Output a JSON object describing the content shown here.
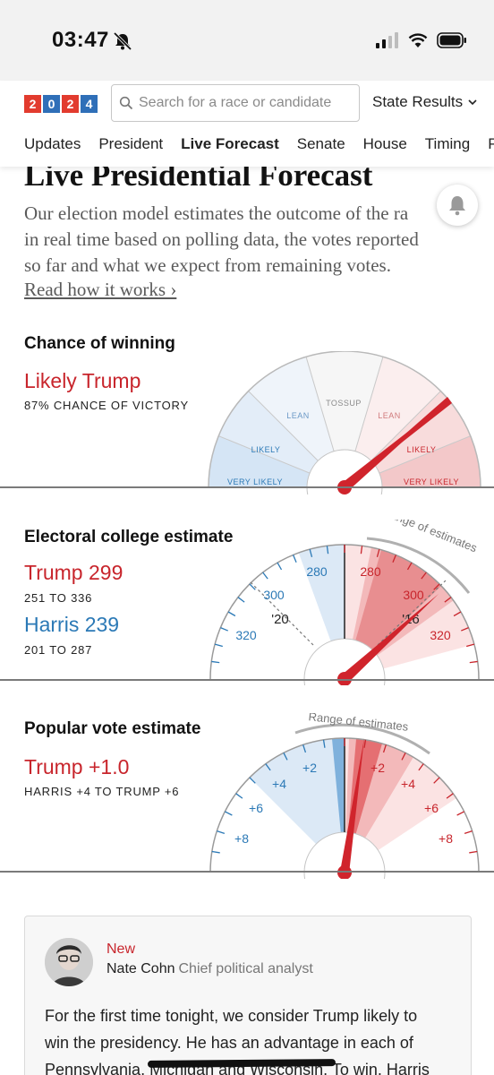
{
  "status_bar": {
    "time": "03:47"
  },
  "header": {
    "logo_digits": [
      "2",
      "0",
      "2",
      "4"
    ],
    "search_placeholder": "Search for a race or candidate",
    "state_results": "State Results",
    "nav": [
      "Updates",
      "President",
      "Live Forecast",
      "Senate",
      "House",
      "Timing",
      "P"
    ],
    "active_nav": "Live Forecast"
  },
  "page": {
    "title": "Live Presidential Forecast",
    "intro_lines": [
      "Our election model estimates the outcome of the ra",
      "in real time based on polling data, the votes reported",
      "so far and what we expect from remaining votes."
    ],
    "read_link": "Read how it works ›"
  },
  "chance": {
    "section_title": "Chance of winning",
    "headline": "Likely Trump",
    "subline": "87% CHANCE OF VICTORY",
    "probability_trump": 0.87,
    "gauge_labels": {
      "very_likely_left": "VERY LIKELY",
      "likely_left": "LIKELY",
      "lean_left": "LEAN",
      "tossup": "TOSSUP",
      "lean_right": "LEAN",
      "likely_right": "LIKELY",
      "very_likely_right": "VERY LIKELY"
    }
  },
  "electoral": {
    "section_title": "Electoral college estimate",
    "trump_label": "Trump 299",
    "trump_range": "251 TO 336",
    "harris_label": "Harris 239",
    "harris_range": "201 TO 287",
    "range_caption": "Range of estimates",
    "tick_labels": {
      "left_280": "280",
      "left_300": "300",
      "left_320": "320",
      "right_280": "280",
      "right_300": "300",
      "right_320": "320"
    },
    "marker_2020": "'20",
    "marker_2016": "'16"
  },
  "popular": {
    "section_title": "Popular vote estimate",
    "headline": "Trump +1.0",
    "range": "HARRIS +4 TO TRUMP +6",
    "range_caption": "Range of estimates",
    "tick_labels": {
      "left_2": "+2",
      "left_4": "+4",
      "left_6": "+6",
      "left_8": "+8",
      "right_2": "+2",
      "right_4": "+4",
      "right_6": "+6",
      "right_8": "+8"
    }
  },
  "update_card": {
    "tag": "New",
    "author": "Nate Cohn",
    "role": "Chief political analyst",
    "lines": [
      "For the first time tonight, we consider Trump likely to",
      "win the presidency. He has an advantage in each of",
      "Pennsylvania, Michigan and Wisconsin. To win, Harris"
    ]
  },
  "colors": {
    "trump_red": "#c8252c",
    "harris_blue": "#2b79b6",
    "logo_red": "#e23b2e",
    "logo_blue": "#2f6fb8"
  }
}
